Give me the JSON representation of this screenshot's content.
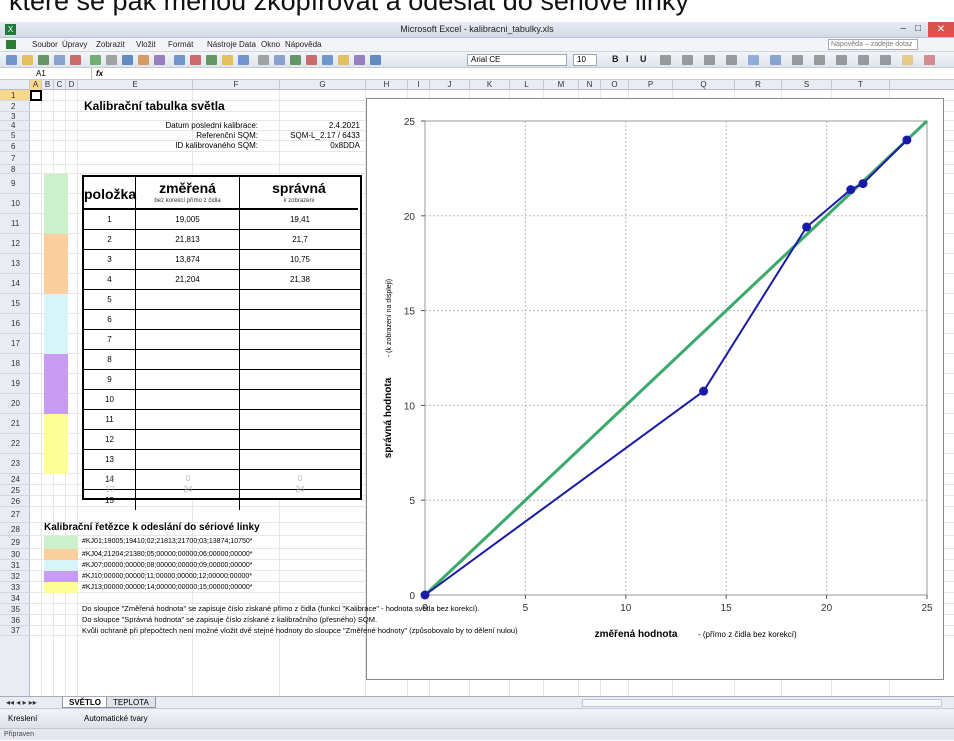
{
  "top_caption": ", které se pak měnou zkopírovat a odeslat do sériové linky",
  "window": {
    "title": "Microsoft Excel - kalibracni_tabulky.xls"
  },
  "menu": [
    "Soubor",
    "Úpravy",
    "Zobrazit",
    "Vložit",
    "Formát",
    "Nástroje",
    "Data",
    "Okno",
    "Nápověda"
  ],
  "help_placeholder": "Nápověda – zadejte dotaz",
  "toolbar": {
    "font": "Arial CE",
    "size": "10"
  },
  "namebox": "A1",
  "fx": "fx",
  "columns": [
    "A",
    "B",
    "C",
    "D",
    "E",
    "F",
    "G",
    "H",
    "I",
    "J",
    "K",
    "L",
    "M",
    "N",
    "O",
    "P",
    "Q",
    "R",
    "S",
    "T"
  ],
  "rows": [
    "1",
    "2",
    "3",
    "4",
    "5",
    "6",
    "7",
    "8",
    "9",
    "10",
    "11",
    "12",
    "13",
    "14",
    "15",
    "16",
    "17",
    "18",
    "19",
    "20",
    "21",
    "22",
    "23",
    "24",
    "25",
    "26",
    "27",
    "28",
    "29",
    "30",
    "31",
    "32",
    "33",
    "34",
    "35",
    "36",
    "37"
  ],
  "sheet": {
    "title": "Kalibrační tabulka světla",
    "cal_date_label": "Datum poslední kalibrace:",
    "cal_date": "2.4.2021",
    "ref_sqm_label": "Referenční SQM:",
    "ref_sqm": "SQM-L_2.17 / 6433",
    "id_sqm_label": "ID kalibrovaného SQM:",
    "id_sqm": "0x8DDA",
    "table_header": {
      "col1": "položka",
      "col2": "změřená",
      "col2_sub": "bez korekcí přímo z čidla",
      "col3": "správná",
      "col3_sub": "k zobrazení"
    },
    "table_rows": [
      {
        "n": "1",
        "m": "19,005",
        "s": "19,41"
      },
      {
        "n": "2",
        "m": "21,813",
        "s": "21,7"
      },
      {
        "n": "3",
        "m": "13,874",
        "s": "10,75"
      },
      {
        "n": "4",
        "m": "21,204",
        "s": "21,38"
      },
      {
        "n": "5",
        "m": "",
        "s": ""
      },
      {
        "n": "6",
        "m": "",
        "s": ""
      },
      {
        "n": "7",
        "m": "",
        "s": ""
      },
      {
        "n": "8",
        "m": "",
        "s": ""
      },
      {
        "n": "9",
        "m": "",
        "s": ""
      },
      {
        "n": "10",
        "m": "",
        "s": ""
      },
      {
        "n": "11",
        "m": "",
        "s": ""
      },
      {
        "n": "12",
        "m": "",
        "s": ""
      },
      {
        "n": "13",
        "m": "",
        "s": ""
      },
      {
        "n": "14",
        "m": "",
        "s": ""
      },
      {
        "n": "15",
        "m": "",
        "s": ""
      }
    ],
    "row24": {
      "n": "16",
      "m": "0",
      "s": "0"
    },
    "row25": {
      "n": "17",
      "m": "24",
      "s": "24"
    },
    "strings_title": "Kalibrační řetězce k odeslání do sériové linky",
    "strings": [
      "#KJ01;19005;19410;02;21813;21700;03;13874;10750*",
      "#KJ04;21204;21380;05;00000;00000;06;00000;00000*",
      "#KJ07;00000;00000;08;00000;00000;09;00000;00000*",
      "#KJ10;00000;00000;11;00000;00000;12;00000;00000*",
      "#KJ13;00000;00000;14;00000;00000;15;00000;00000*"
    ],
    "notes": [
      "Do sloupce \"Změřená hodnota\" se zapisuje číslo získané přímo z čidla (funkcí \"Kalibrace\" - hodnota světla bez korekcí).",
      "Do sloupce \"Správná hodnota\" se zapisuje číslo získané z kalibračního (přesného) SQM.",
      "Kvůli ochraně při přepočtech není možné vložit dvě stejné hodnoty do sloupce \"Změřené hodnoty\" (způsobovalo by to dělení nulou)"
    ]
  },
  "colors": {
    "green": "#ccf0cc",
    "orange": "#fbcfa0",
    "cyan": "#d6f5f8",
    "purple": "#c89cf0",
    "yellow": "#ffff99",
    "series_line": "#1a1aa8",
    "ref_line": "#3aaa6a"
  },
  "chart_data": {
    "type": "line",
    "xlabel": "změřená hodnota",
    "xlabel_note": "- (přímo z čidla bez korekcí)",
    "ylabel": "správná hodnota",
    "ylabel_note": "- (k zobrazení na displeji)",
    "xlim": [
      0,
      25
    ],
    "ylim": [
      0,
      25
    ],
    "xticks": [
      "0",
      "5",
      "10",
      "15",
      "20",
      "25"
    ],
    "yticks": [
      "0",
      "5",
      "10",
      "15",
      "20",
      "25"
    ],
    "grid": true,
    "series": [
      {
        "values": [
          [
            0,
            0
          ],
          [
            13.874,
            10.75
          ],
          [
            19.005,
            19.41
          ],
          [
            21.204,
            21.38
          ],
          [
            21.813,
            21.7
          ],
          [
            24,
            24
          ]
        ]
      },
      {
        "values": [
          [
            0,
            0
          ],
          [
            25,
            25
          ]
        ]
      }
    ]
  },
  "sheet_tabs": [
    "SVĚTLO",
    "TEPLOTA"
  ],
  "draw_bar": {
    "kreslení": "Kreslení",
    "autoshapes": "Automatické tvary"
  },
  "status": "Připraven"
}
